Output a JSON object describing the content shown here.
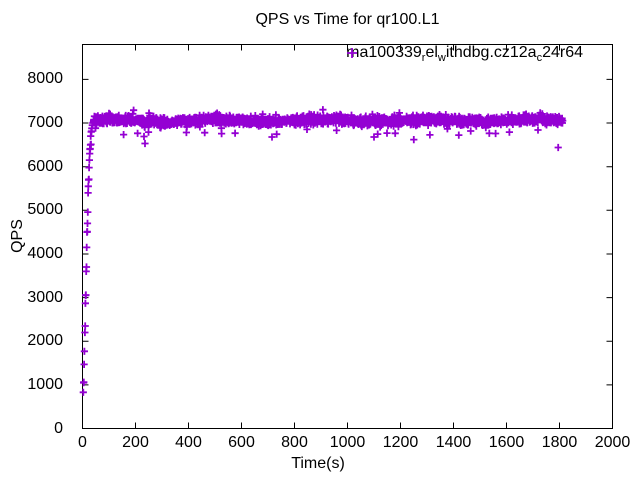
{
  "title": "QPS vs Time for qr100.L1",
  "legend": {
    "label_plain": "ma100339_rel_withdbg.cz12a_c24r64",
    "label_parts": [
      {
        "text": "ma100339"
      },
      {
        "sub": "r"
      },
      {
        "text": "el"
      },
      {
        "sub": "w"
      },
      {
        "text": "ithdbg.cz12a"
      },
      {
        "sub": "c"
      },
      {
        "text": "24r64"
      }
    ],
    "marker_glyph": "+",
    "marker_color": "#9400D3"
  },
  "colors": {
    "series": "#9400D3",
    "axis": "#000000",
    "background": "#ffffff"
  },
  "chart_data": {
    "type": "scatter",
    "title": "QPS vs Time for qr100.L1",
    "xlabel": "Time(s)",
    "ylabel": "QPS",
    "xlim": [
      0,
      2000
    ],
    "ylim": [
      0,
      8800
    ],
    "xticks": [
      0,
      200,
      400,
      600,
      800,
      1000,
      1200,
      1400,
      1600,
      1800,
      2000
    ],
    "yticks": [
      0,
      1000,
      2000,
      3000,
      4000,
      5000,
      6000,
      7000,
      8000
    ],
    "grid": false,
    "tick_style": "inward-mirrored",
    "legend_position": "top-right-inside",
    "series": [
      {
        "name": "ma100339_rel_withdbg.cz12a_c24r64",
        "marker": "plus",
        "color": "#9400D3",
        "ramp_points": [
          [
            3,
            830
          ],
          [
            4,
            1050
          ],
          [
            5,
            1060
          ],
          [
            6,
            1470
          ],
          [
            7,
            1770
          ],
          [
            9,
            2200
          ],
          [
            10,
            2350
          ],
          [
            11,
            2870
          ],
          [
            12,
            3050
          ],
          [
            13,
            3060
          ],
          [
            14,
            3600
          ],
          [
            15,
            3700
          ],
          [
            16,
            4150
          ],
          [
            17,
            4500
          ],
          [
            18,
            4510
          ],
          [
            19,
            4700
          ],
          [
            20,
            4960
          ],
          [
            21,
            5400
          ],
          [
            22,
            5550
          ],
          [
            23,
            5700
          ],
          [
            24,
            5710
          ],
          [
            25,
            5980
          ],
          [
            26,
            6150
          ],
          [
            27,
            6300
          ],
          [
            28,
            6400
          ],
          [
            29,
            6410
          ],
          [
            30,
            6500
          ],
          [
            31,
            6700
          ],
          [
            32,
            6510
          ],
          [
            33,
            6800
          ],
          [
            34,
            6810
          ],
          [
            35,
            6880
          ],
          [
            37,
            6950
          ],
          [
            39,
            7000
          ],
          [
            41,
            7020
          ]
        ],
        "steady_state": {
          "t_start": 42,
          "t_end": 1812,
          "interval": 1,
          "mean": 7060,
          "jitter": 85,
          "wave_amplitude": 25,
          "wave_period": 400,
          "dip_rate": 0.018,
          "dip_min": 130,
          "dip_max": 380,
          "spike_rate": 0.012,
          "spike_min": 60,
          "spike_max": 200
        },
        "outliers": [
          [
            1100,
            6680
          ],
          [
            1795,
            6440
          ]
        ]
      }
    ]
  }
}
